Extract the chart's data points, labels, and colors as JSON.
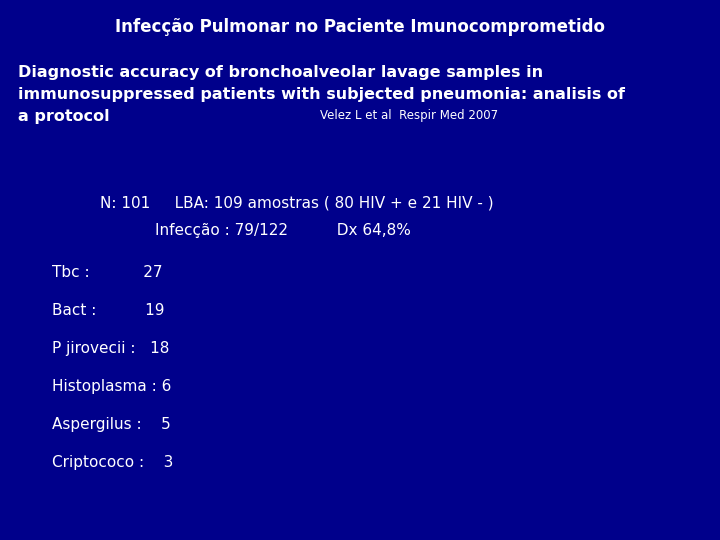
{
  "background_color": "#00008B",
  "title": "Infecção Pulmonar no Paciente Imunocomprometido",
  "title_color": "#FFFFFF",
  "title_fontsize": 12,
  "subtitle_line1": "Diagnostic accuracy of bronchoalveolar lavage samples in",
  "subtitle_line2": "immunosuppressed patients with subjected pneumonia: analisis of",
  "subtitle_line3": "a protocol",
  "subtitle_ref": "Velez L et al  Respir Med 2007",
  "subtitle_fontsize": 11.5,
  "subtitle_color": "#FFFFFF",
  "ref_fontsize": 8.5,
  "line1": "N: 101     LBA: 109 amostras ( 80 HIV + e 21 HIV - )",
  "line2": "Infecção : 79/122          Dx 64,8%",
  "line1_fontsize": 11,
  "line2_fontsize": 11,
  "data_lines": [
    "Tbc :           27",
    "Bact :          19",
    "P jirovecii :   18",
    "Histoplasma : 6",
    "Aspergilus :    5",
    "Criptococo :    3"
  ],
  "data_fontsize": 11,
  "text_color": "#FFFFFF"
}
